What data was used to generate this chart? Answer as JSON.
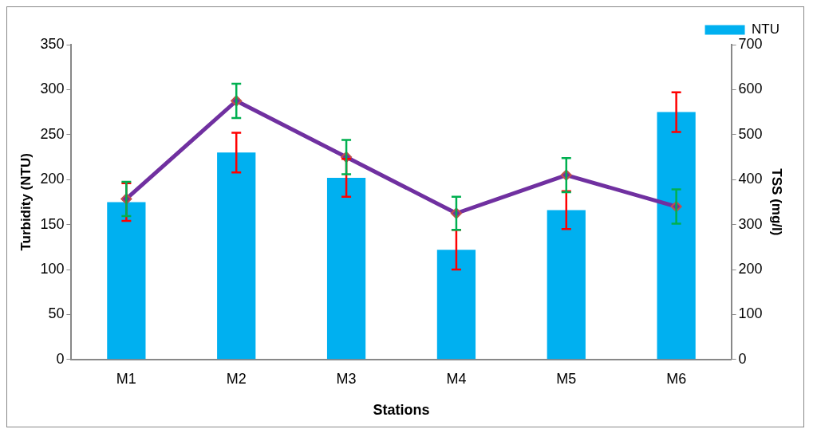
{
  "chart_data": {
    "type": "bar",
    "xlabel": "Stations",
    "ylabel": "Turbidity (NTU)",
    "y2label": "TSS (mg/l)",
    "categories": [
      "M1",
      "M2",
      "M3",
      "M4",
      "M5",
      "M6"
    ],
    "series": [
      {
        "name": "NTU",
        "color": "#00b0f0",
        "values": [
          175,
          230,
          202,
          122,
          166,
          275
        ],
        "errors": [
          21,
          22,
          21,
          22,
          21,
          22
        ]
      },
      {
        "type": "line",
        "axis": "y2",
        "color": "#7030a0",
        "values": [
          357,
          575,
          450,
          325,
          410,
          340
        ],
        "errors": [
          38,
          38,
          38,
          37,
          38,
          38
        ]
      }
    ],
    "ylim": [
      0,
      350
    ],
    "yticks": [
      0,
      50,
      100,
      150,
      200,
      250,
      300,
      350
    ],
    "y2lim": [
      0,
      700
    ],
    "y2ticks": [
      0,
      100,
      200,
      300,
      400,
      500,
      600,
      700
    ],
    "grid": false,
    "legend": "top right",
    "marker": "diamond",
    "line_style": "solid"
  }
}
